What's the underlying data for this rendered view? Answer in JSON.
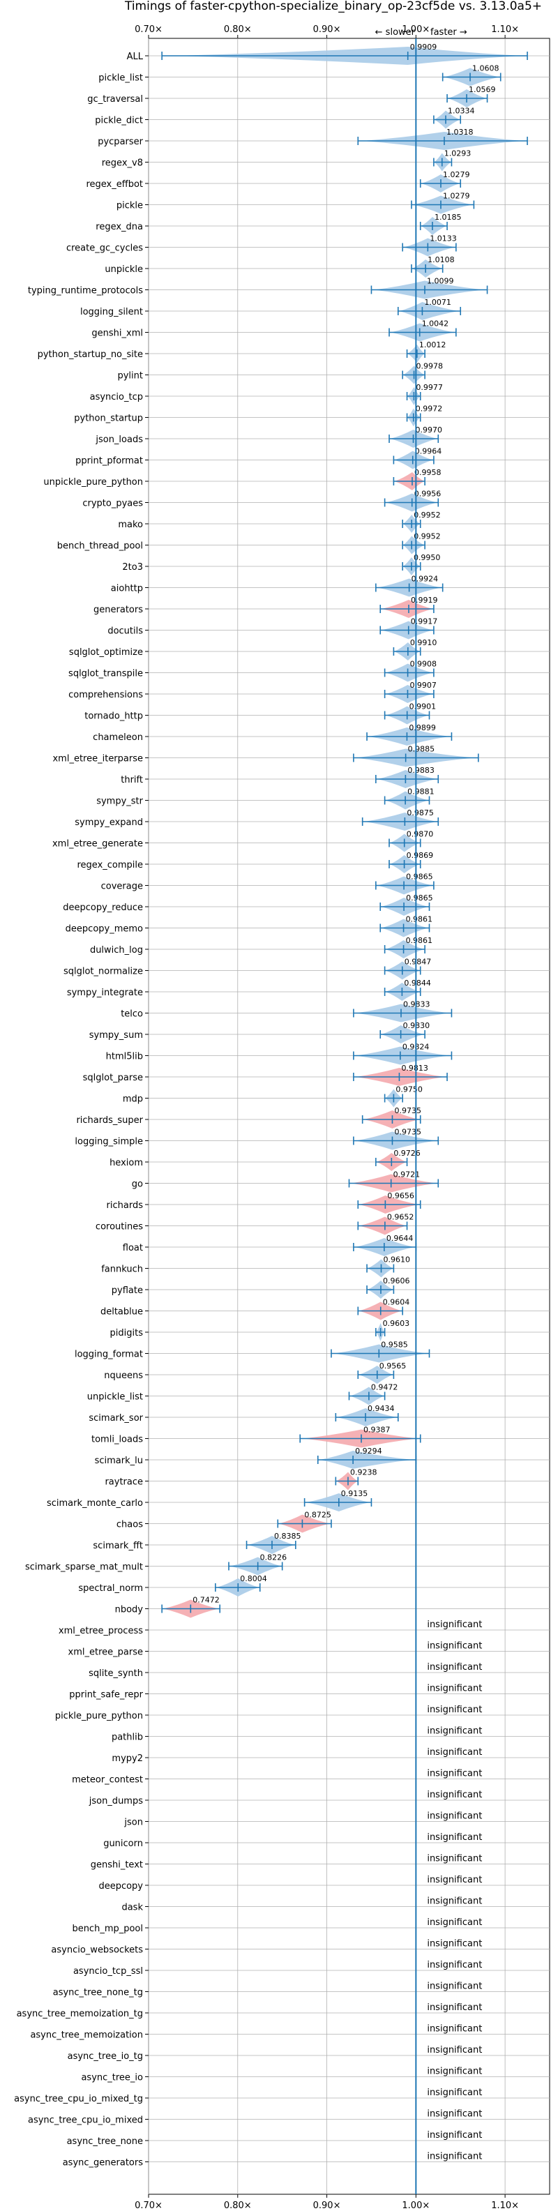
{
  "chart_data": {
    "type": "violin",
    "title": "Timings of faster-cpython-specialize_binary_op-23cf5de vs. 3.13.0a5+",
    "direction_labels": {
      "slower": "← slower",
      "faster": "faster →"
    },
    "x_ticks": [
      "0.70×",
      "0.80×",
      "0.90×",
      "1.00×",
      "1.10×"
    ],
    "x_tick_values": [
      0.7,
      0.8,
      0.9,
      1.0,
      1.1
    ],
    "xlim": [
      0.7,
      1.15
    ],
    "reference_value": 1.0,
    "grid": true,
    "colors": {
      "faster": "#a9cbe8",
      "slower": "#f4a8ad",
      "line": "#1f77b4"
    },
    "insignificant_label": "insignificant",
    "benchmarks": [
      {
        "name": "ALL",
        "value": 0.9909,
        "label": "0.9909",
        "lo": 0.715,
        "hi": 1.125,
        "color": "faster"
      },
      {
        "name": "pickle_list",
        "value": 1.0608,
        "label": "1.0608",
        "lo": 1.03,
        "hi": 1.095,
        "color": "faster"
      },
      {
        "name": "gc_traversal",
        "value": 1.0569,
        "label": "1.0569",
        "lo": 1.035,
        "hi": 1.08,
        "color": "faster"
      },
      {
        "name": "pickle_dict",
        "value": 1.0334,
        "label": "1.0334",
        "lo": 1.02,
        "hi": 1.05,
        "color": "faster"
      },
      {
        "name": "pycparser",
        "value": 1.0318,
        "label": "1.0318",
        "lo": 0.935,
        "hi": 1.125,
        "color": "faster"
      },
      {
        "name": "regex_v8",
        "value": 1.0293,
        "label": "1.0293",
        "lo": 1.02,
        "hi": 1.04,
        "color": "faster"
      },
      {
        "name": "regex_effbot",
        "value": 1.0279,
        "label": "1.0279",
        "lo": 1.005,
        "hi": 1.05,
        "color": "faster"
      },
      {
        "name": "pickle",
        "value": 1.0279,
        "label": "1.0279",
        "lo": 0.995,
        "hi": 1.065,
        "color": "faster"
      },
      {
        "name": "regex_dna",
        "value": 1.0185,
        "label": "1.0185",
        "lo": 1.005,
        "hi": 1.035,
        "color": "faster"
      },
      {
        "name": "create_gc_cycles",
        "value": 1.0133,
        "label": "1.0133",
        "lo": 0.985,
        "hi": 1.045,
        "color": "faster"
      },
      {
        "name": "unpickle",
        "value": 1.0108,
        "label": "1.0108",
        "lo": 0.995,
        "hi": 1.03,
        "color": "faster"
      },
      {
        "name": "typing_runtime_protocols",
        "value": 1.0099,
        "label": "1.0099",
        "lo": 0.95,
        "hi": 1.08,
        "color": "faster"
      },
      {
        "name": "logging_silent",
        "value": 1.0071,
        "label": "1.0071",
        "lo": 0.98,
        "hi": 1.05,
        "color": "faster"
      },
      {
        "name": "genshi_xml",
        "value": 1.0042,
        "label": "1.0042",
        "lo": 0.97,
        "hi": 1.045,
        "color": "faster"
      },
      {
        "name": "python_startup_no_site",
        "value": 1.0012,
        "label": "1.0012",
        "lo": 0.99,
        "hi": 1.01,
        "color": "faster"
      },
      {
        "name": "pylint",
        "value": 0.9978,
        "label": "0.9978",
        "lo": 0.985,
        "hi": 1.01,
        "color": "faster"
      },
      {
        "name": "asyncio_tcp",
        "value": 0.9977,
        "label": "0.9977",
        "lo": 0.99,
        "hi": 1.005,
        "color": "faster"
      },
      {
        "name": "python_startup",
        "value": 0.9972,
        "label": "0.9972",
        "lo": 0.99,
        "hi": 1.005,
        "color": "faster"
      },
      {
        "name": "json_loads",
        "value": 0.997,
        "label": "0.9970",
        "lo": 0.97,
        "hi": 1.025,
        "color": "faster"
      },
      {
        "name": "pprint_pformat",
        "value": 0.9964,
        "label": "0.9964",
        "lo": 0.975,
        "hi": 1.02,
        "color": "faster"
      },
      {
        "name": "unpickle_pure_python",
        "value": 0.9958,
        "label": "0.9958",
        "lo": 0.975,
        "hi": 1.01,
        "color": "slower"
      },
      {
        "name": "crypto_pyaes",
        "value": 0.9956,
        "label": "0.9956",
        "lo": 0.965,
        "hi": 1.025,
        "color": "faster"
      },
      {
        "name": "mako",
        "value": 0.9952,
        "label": "0.9952",
        "lo": 0.985,
        "hi": 1.005,
        "color": "faster"
      },
      {
        "name": "bench_thread_pool",
        "value": 0.9952,
        "label": "0.9952",
        "lo": 0.985,
        "hi": 1.01,
        "color": "faster"
      },
      {
        "name": "2to3",
        "value": 0.995,
        "label": "0.9950",
        "lo": 0.985,
        "hi": 1.005,
        "color": "faster"
      },
      {
        "name": "aiohttp",
        "value": 0.9924,
        "label": "0.9924",
        "lo": 0.955,
        "hi": 1.03,
        "color": "faster"
      },
      {
        "name": "generators",
        "value": 0.9919,
        "label": "0.9919",
        "lo": 0.96,
        "hi": 1.02,
        "color": "slower"
      },
      {
        "name": "docutils",
        "value": 0.9917,
        "label": "0.9917",
        "lo": 0.96,
        "hi": 1.02,
        "color": "faster"
      },
      {
        "name": "sqlglot_optimize",
        "value": 0.991,
        "label": "0.9910",
        "lo": 0.975,
        "hi": 1.005,
        "color": "faster"
      },
      {
        "name": "sqlglot_transpile",
        "value": 0.9908,
        "label": "0.9908",
        "lo": 0.965,
        "hi": 1.02,
        "color": "faster"
      },
      {
        "name": "comprehensions",
        "value": 0.9907,
        "label": "0.9907",
        "lo": 0.965,
        "hi": 1.02,
        "color": "faster"
      },
      {
        "name": "tornado_http",
        "value": 0.9901,
        "label": "0.9901",
        "lo": 0.965,
        "hi": 1.015,
        "color": "faster"
      },
      {
        "name": "chameleon",
        "value": 0.9899,
        "label": "0.9899",
        "lo": 0.945,
        "hi": 1.04,
        "color": "faster"
      },
      {
        "name": "xml_etree_iterparse",
        "value": 0.9885,
        "label": "0.9885",
        "lo": 0.93,
        "hi": 1.07,
        "color": "faster"
      },
      {
        "name": "thrift",
        "value": 0.9883,
        "label": "0.9883",
        "lo": 0.955,
        "hi": 1.025,
        "color": "faster"
      },
      {
        "name": "sympy_str",
        "value": 0.9881,
        "label": "0.9881",
        "lo": 0.965,
        "hi": 1.015,
        "color": "faster"
      },
      {
        "name": "sympy_expand",
        "value": 0.9875,
        "label": "0.9875",
        "lo": 0.94,
        "hi": 1.025,
        "color": "faster"
      },
      {
        "name": "xml_etree_generate",
        "value": 0.987,
        "label": "0.9870",
        "lo": 0.97,
        "hi": 1.005,
        "color": "faster"
      },
      {
        "name": "regex_compile",
        "value": 0.9869,
        "label": "0.9869",
        "lo": 0.97,
        "hi": 1.005,
        "color": "faster"
      },
      {
        "name": "coverage",
        "value": 0.9865,
        "label": "0.9865",
        "lo": 0.955,
        "hi": 1.02,
        "color": "faster"
      },
      {
        "name": "deepcopy_reduce",
        "value": 0.9865,
        "label": "0.9865",
        "lo": 0.96,
        "hi": 1.015,
        "color": "faster"
      },
      {
        "name": "deepcopy_memo",
        "value": 0.9861,
        "label": "0.9861",
        "lo": 0.96,
        "hi": 1.015,
        "color": "faster"
      },
      {
        "name": "dulwich_log",
        "value": 0.9861,
        "label": "0.9861",
        "lo": 0.965,
        "hi": 1.01,
        "color": "faster"
      },
      {
        "name": "sqlglot_normalize",
        "value": 0.9847,
        "label": "0.9847",
        "lo": 0.965,
        "hi": 1.005,
        "color": "faster"
      },
      {
        "name": "sympy_integrate",
        "value": 0.9844,
        "label": "0.9844",
        "lo": 0.965,
        "hi": 1.005,
        "color": "faster"
      },
      {
        "name": "telco",
        "value": 0.9833,
        "label": "0.9833",
        "lo": 0.93,
        "hi": 1.04,
        "color": "faster"
      },
      {
        "name": "sympy_sum",
        "value": 0.983,
        "label": "0.9830",
        "lo": 0.96,
        "hi": 1.01,
        "color": "faster"
      },
      {
        "name": "html5lib",
        "value": 0.9824,
        "label": "0.9824",
        "lo": 0.93,
        "hi": 1.04,
        "color": "faster"
      },
      {
        "name": "sqlglot_parse",
        "value": 0.9813,
        "label": "0.9813",
        "lo": 0.93,
        "hi": 1.035,
        "color": "slower"
      },
      {
        "name": "mdp",
        "value": 0.975,
        "label": "0.9750",
        "lo": 0.965,
        "hi": 0.985,
        "color": "faster"
      },
      {
        "name": "richards_super",
        "value": 0.9735,
        "label": "0.9735",
        "lo": 0.94,
        "hi": 1.005,
        "color": "slower"
      },
      {
        "name": "logging_simple",
        "value": 0.9735,
        "label": "0.9735",
        "lo": 0.93,
        "hi": 1.025,
        "color": "faster"
      },
      {
        "name": "hexiom",
        "value": 0.9726,
        "label": "0.9726",
        "lo": 0.955,
        "hi": 0.99,
        "color": "slower"
      },
      {
        "name": "go",
        "value": 0.9721,
        "label": "0.9721",
        "lo": 0.925,
        "hi": 1.025,
        "color": "slower"
      },
      {
        "name": "richards",
        "value": 0.9656,
        "label": "0.9656",
        "lo": 0.935,
        "hi": 1.005,
        "color": "slower"
      },
      {
        "name": "coroutines",
        "value": 0.9652,
        "label": "0.9652",
        "lo": 0.935,
        "hi": 0.99,
        "color": "slower"
      },
      {
        "name": "float",
        "value": 0.9644,
        "label": "0.9644",
        "lo": 0.93,
        "hi": 1.0,
        "color": "faster"
      },
      {
        "name": "fannkuch",
        "value": 0.961,
        "label": "0.9610",
        "lo": 0.945,
        "hi": 0.975,
        "color": "faster"
      },
      {
        "name": "pyflate",
        "value": 0.9606,
        "label": "0.9606",
        "lo": 0.945,
        "hi": 0.975,
        "color": "faster"
      },
      {
        "name": "deltablue",
        "value": 0.9604,
        "label": "0.9604",
        "lo": 0.935,
        "hi": 0.985,
        "color": "slower"
      },
      {
        "name": "pidigits",
        "value": 0.9603,
        "label": "0.9603",
        "lo": 0.955,
        "hi": 0.965,
        "color": "faster"
      },
      {
        "name": "logging_format",
        "value": 0.9585,
        "label": "0.9585",
        "lo": 0.905,
        "hi": 1.015,
        "color": "faster"
      },
      {
        "name": "nqueens",
        "value": 0.9565,
        "label": "0.9565",
        "lo": 0.935,
        "hi": 0.975,
        "color": "faster"
      },
      {
        "name": "unpickle_list",
        "value": 0.9472,
        "label": "0.9472",
        "lo": 0.925,
        "hi": 0.965,
        "color": "faster"
      },
      {
        "name": "scimark_sor",
        "value": 0.9434,
        "label": "0.9434",
        "lo": 0.91,
        "hi": 0.98,
        "color": "faster"
      },
      {
        "name": "tomli_loads",
        "value": 0.9387,
        "label": "0.9387",
        "lo": 0.87,
        "hi": 1.005,
        "color": "slower"
      },
      {
        "name": "scimark_lu",
        "value": 0.9294,
        "label": "0.9294",
        "lo": 0.89,
        "hi": 1.0,
        "color": "faster"
      },
      {
        "name": "raytrace",
        "value": 0.9238,
        "label": "0.9238",
        "lo": 0.91,
        "hi": 0.935,
        "color": "slower"
      },
      {
        "name": "scimark_monte_carlo",
        "value": 0.9135,
        "label": "0.9135",
        "lo": 0.875,
        "hi": 0.95,
        "color": "faster"
      },
      {
        "name": "chaos",
        "value": 0.8725,
        "label": "0.8725",
        "lo": 0.845,
        "hi": 0.905,
        "color": "slower"
      },
      {
        "name": "scimark_fft",
        "value": 0.8385,
        "label": "0.8385",
        "lo": 0.81,
        "hi": 0.865,
        "color": "faster"
      },
      {
        "name": "scimark_sparse_mat_mult",
        "value": 0.8226,
        "label": "0.8226",
        "lo": 0.79,
        "hi": 0.85,
        "color": "faster"
      },
      {
        "name": "spectral_norm",
        "value": 0.8004,
        "label": "0.8004",
        "lo": 0.775,
        "hi": 0.825,
        "color": "faster"
      },
      {
        "name": "nbody",
        "value": 0.7472,
        "label": "0.7472",
        "lo": 0.715,
        "hi": 0.78,
        "color": "slower"
      },
      {
        "name": "xml_etree_process",
        "insignificant": true
      },
      {
        "name": "xml_etree_parse",
        "insignificant": true
      },
      {
        "name": "sqlite_synth",
        "insignificant": true
      },
      {
        "name": "pprint_safe_repr",
        "insignificant": true
      },
      {
        "name": "pickle_pure_python",
        "insignificant": true
      },
      {
        "name": "pathlib",
        "insignificant": true
      },
      {
        "name": "mypy2",
        "insignificant": true
      },
      {
        "name": "meteor_contest",
        "insignificant": true
      },
      {
        "name": "json_dumps",
        "insignificant": true
      },
      {
        "name": "json",
        "insignificant": true
      },
      {
        "name": "gunicorn",
        "insignificant": true
      },
      {
        "name": "genshi_text",
        "insignificant": true
      },
      {
        "name": "deepcopy",
        "insignificant": true
      },
      {
        "name": "dask",
        "insignificant": true
      },
      {
        "name": "bench_mp_pool",
        "insignificant": true
      },
      {
        "name": "asyncio_websockets",
        "insignificant": true
      },
      {
        "name": "asyncio_tcp_ssl",
        "insignificant": true
      },
      {
        "name": "async_tree_none_tg",
        "insignificant": true
      },
      {
        "name": "async_tree_memoization_tg",
        "insignificant": true
      },
      {
        "name": "async_tree_memoization",
        "insignificant": true
      },
      {
        "name": "async_tree_io_tg",
        "insignificant": true
      },
      {
        "name": "async_tree_io",
        "insignificant": true
      },
      {
        "name": "async_tree_cpu_io_mixed_tg",
        "insignificant": true
      },
      {
        "name": "async_tree_cpu_io_mixed",
        "insignificant": true
      },
      {
        "name": "async_tree_none",
        "insignificant": true
      },
      {
        "name": "async_generators",
        "insignificant": true
      }
    ]
  }
}
